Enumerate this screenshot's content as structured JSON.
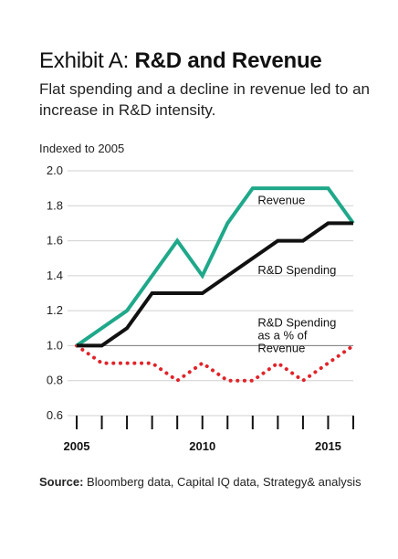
{
  "title_prefix": "Exhibit A: ",
  "title_bold": "R&D and Revenue",
  "subtitle": "Flat spending and a decline in revenue led to an increase in R&D intensity.",
  "source_label": "Source:",
  "source_text": " Bloomberg data, Capital IQ data, Strategy& analysis",
  "chart_data": {
    "type": "line",
    "ylabel": "Indexed to 2005",
    "xlim": [
      2005,
      2016
    ],
    "ylim": [
      0.6,
      2.0
    ],
    "yticks": [
      0.6,
      0.8,
      1.0,
      1.2,
      1.4,
      1.6,
      1.8,
      2.0
    ],
    "ytick_labels": [
      "0.6",
      "0.8",
      "1.0",
      "1.2",
      "1.4",
      "1.6",
      "1.8",
      "2.0"
    ],
    "xticks": [
      2005,
      2006,
      2007,
      2008,
      2009,
      2010,
      2011,
      2012,
      2013,
      2014,
      2015,
      2016
    ],
    "xtick_labels": [
      {
        "x": 2005,
        "label": "2005"
      },
      {
        "x": 2010,
        "label": "2010"
      },
      {
        "x": 2015,
        "label": "2015"
      }
    ],
    "reference_line": 1.0,
    "series": [
      {
        "name": "Revenue",
        "color": "#1fa88a",
        "style": "solid",
        "x": [
          2005,
          2006,
          2007,
          2008,
          2009,
          2010,
          2011,
          2012,
          2013,
          2014,
          2015,
          2016
        ],
        "values": [
          1.0,
          1.1,
          1.2,
          1.4,
          1.6,
          1.4,
          1.7,
          1.9,
          1.9,
          1.9,
          1.9,
          1.7
        ]
      },
      {
        "name": "R&D Spending",
        "color": "#111111",
        "style": "solid",
        "x": [
          2005,
          2006,
          2007,
          2008,
          2009,
          2010,
          2011,
          2012,
          2013,
          2014,
          2015,
          2016
        ],
        "values": [
          1.0,
          1.0,
          1.1,
          1.3,
          1.3,
          1.3,
          1.4,
          1.5,
          1.6,
          1.6,
          1.7,
          1.7
        ]
      },
      {
        "name": "R&D Spending as a % of Revenue",
        "color": "#e0242a",
        "style": "dotted",
        "x": [
          2005,
          2006,
          2007,
          2008,
          2009,
          2010,
          2011,
          2012,
          2013,
          2014,
          2015,
          2016
        ],
        "values": [
          1.0,
          0.9,
          0.9,
          0.9,
          0.8,
          0.9,
          0.8,
          0.8,
          0.9,
          0.8,
          0.9,
          1.0
        ]
      }
    ],
    "annotations": [
      {
        "lines": [
          "Revenue"
        ],
        "x": 2012.2,
        "y": 1.81
      },
      {
        "lines": [
          "R&D Spending"
        ],
        "x": 2012.2,
        "y": 1.41
      },
      {
        "lines": [
          "R&D Spending",
          "as a % of",
          "Revenue"
        ],
        "x": 2012.2,
        "y": 1.11
      }
    ]
  }
}
